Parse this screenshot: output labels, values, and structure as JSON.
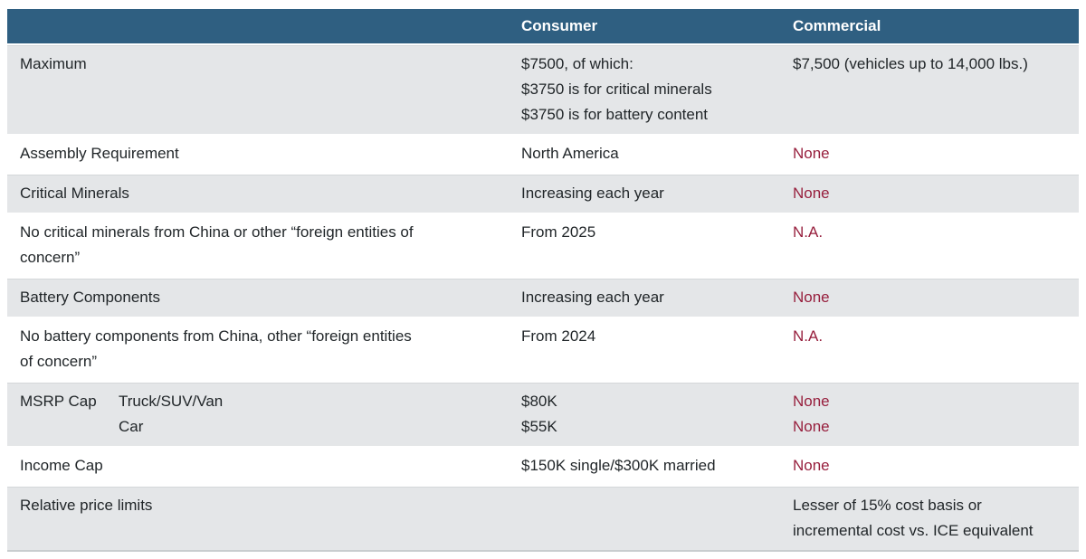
{
  "colors": {
    "header_bg": "#2f5f81",
    "header_text": "#ffffff",
    "row_alt_bg": "#e4e6e8",
    "row_bg": "#ffffff",
    "body_text": "#212629",
    "accent_red": "#971f3d"
  },
  "table": {
    "header": {
      "col1": "",
      "consumer": "Consumer",
      "commercial": "Commercial"
    },
    "rows": [
      {
        "label": [
          "Maximum"
        ],
        "consumer": [
          "$7500, of which:",
          "$3750 is for critical minerals",
          "$3750 is for battery content"
        ],
        "commercial": [
          "$7,500 (vehicles up to 14,000 lbs.)"
        ],
        "commercial_style": "normal"
      },
      {
        "label": [
          "Assembly Requirement"
        ],
        "consumer": [
          "North America"
        ],
        "commercial": [
          "None"
        ],
        "commercial_style": "red"
      },
      {
        "label": [
          "Critical Minerals"
        ],
        "consumer": [
          "Increasing each year"
        ],
        "commercial": [
          "None"
        ],
        "commercial_style": "red"
      },
      {
        "label": [
          "No critical minerals from China or other “foreign entities of",
          "concern”"
        ],
        "consumer": [
          "From 2025"
        ],
        "commercial": [
          "N.A."
        ],
        "commercial_style": "red"
      },
      {
        "label": [
          "Battery Components"
        ],
        "consumer": [
          "Increasing each year"
        ],
        "commercial": [
          "None"
        ],
        "commercial_style": "red"
      },
      {
        "label": [
          "No battery components from China, other “foreign entities",
          "of concern”"
        ],
        "consumer": [
          "From 2024"
        ],
        "commercial": [
          "N.A."
        ],
        "commercial_style": "red"
      },
      {
        "label": [
          "MSRP Cap"
        ],
        "sublabels": [
          "Truck/SUV/Van",
          "Car"
        ],
        "consumer": [
          "$80K",
          "$55K"
        ],
        "commercial": [
          "None",
          "None"
        ],
        "commercial_style": "red"
      },
      {
        "label": [
          "Income Cap"
        ],
        "consumer": [
          "$150K single/$300K married"
        ],
        "commercial": [
          "None"
        ],
        "commercial_style": "red"
      },
      {
        "label": [
          "Relative price limits"
        ],
        "consumer": [],
        "commercial": [
          "Lesser of 15% cost basis or",
          "incremental cost vs. ICE equivalent"
        ],
        "commercial_style": "normal"
      }
    ]
  }
}
